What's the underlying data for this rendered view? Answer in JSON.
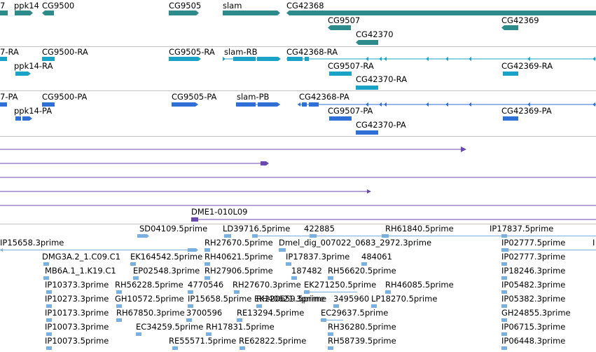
{
  "colors": {
    "gene": "#2e8b8b",
    "transcript": "#1aa3c6",
    "protein": "#2f6fd6",
    "alignment": "#6a49b0",
    "est": "#7ab0e0",
    "separator": "#c4c4c4"
  },
  "gene_track": {
    "labels": [
      "7",
      "ppk14",
      "CG9500",
      "CG9505",
      "slam",
      "CG42368",
      "CG9507",
      "CG42370",
      "CG42369"
    ]
  },
  "transcript_track": {
    "labels": [
      "7-RA",
      "CG9500-RA",
      "CG9505-RA",
      "slam-RB",
      "CG42368-RA",
      "ppk14-RA",
      "CG9507-RA",
      "CG42369-RA",
      "CG42370-RA"
    ]
  },
  "protein_track": {
    "labels": [
      "7-PA",
      "CG9500-PA",
      "CG9505-PA",
      "slam-PB",
      "CG42368-PA",
      "ppk14-PA",
      "CG9507-PA",
      "CG42369-PA",
      "CG42370-PA"
    ]
  },
  "alignment_track": {
    "label": "DME1-010L09"
  },
  "est_track": {
    "labels": [
      "SD04109.5prime",
      "LD39716.5prime",
      "422885",
      "RH61840.5prime",
      "IP17837.5prime",
      "IP15658.3prime",
      "RH27670.5prime",
      "Dmel_dig_007022_0683_2972.3prime",
      "IP02777.5prime",
      "I",
      "DMG3A.2_1.C09.C1",
      "EK164542.5prime",
      "RH40621.5prime",
      "IP17837.3prime",
      "484061",
      "IP02777.3prime",
      "MB6A.1_1.K19.C1",
      "EP02548.3prime",
      "RH27906.5prime",
      "187482",
      "RH56620.5prime",
      "IP18246.3prime",
      "IP10373.3prime",
      "RH56228.5prime",
      "4770546",
      "RH27670.3prime",
      "EK271250.5prime",
      "RH46085.5prime",
      "IP05482.3prime",
      "IP10273.3prime",
      "GH10572.5prime",
      "IP15658.5prime",
      "RH40621.3prime",
      "EK220659.5prime",
      "3495960",
      "LP18270.5prime",
      "IP05382.3prime",
      "IP10173.3prime",
      "RH67850.3prime",
      "3700596",
      "RE13294.5prime",
      "EC29637.5prime",
      "GH24855.3prime",
      "IP10073.3prime",
      "EC34259.5prime",
      "RH17831.5prime",
      "RH36280.5prime",
      "IP06715.3prime",
      "IP10073.5prime",
      "RE55571.5prime",
      "RE62822.5prime",
      "RH58739.5prime",
      "IP06448.3prime"
    ]
  }
}
